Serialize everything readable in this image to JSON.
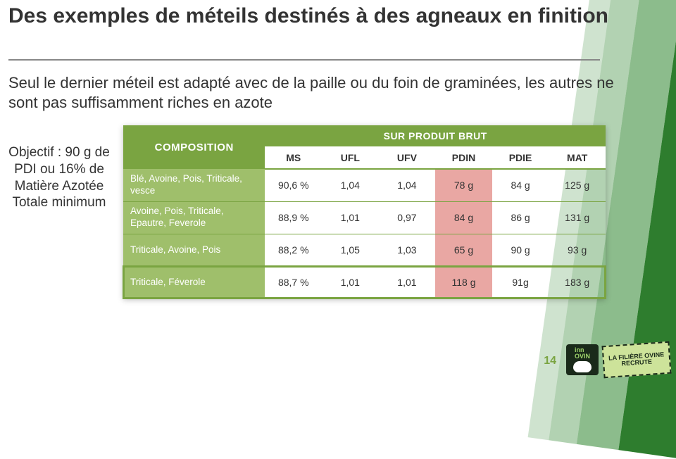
{
  "title": "Des exemples de méteils destinés à des agneaux en finition",
  "subtitle": "Seul le dernier méteil est adapté avec de la paille ou du foin de graminées, les autres ne sont pas suffisamment riches en azote",
  "objectif": "Objectif : 90 g de PDI ou 16% de Matière Azotée Totale minimum",
  "table": {
    "header_composition": "COMPOSITION",
    "header_spb": "SUR PRODUIT BRUT",
    "columns": [
      "MS",
      "UFL",
      "UFV",
      "PDIN",
      "PDIE",
      "MAT"
    ],
    "highlight_columns": [
      "PDIN"
    ],
    "highlight_row_index": 3,
    "colors": {
      "header_bg": "#7aa441",
      "rowlabel_bg": "#9fbf6b",
      "pdin_bg": "#e9a7a3",
      "rule": "#7aa441",
      "text_white": "#ffffff",
      "text_dark": "#333333"
    },
    "rows": [
      {
        "label": "Blé, Avoine, Pois, Triticale, vesce",
        "values": [
          "90,6 %",
          "1,04",
          "1,04",
          "78 g",
          "84 g",
          "125 g"
        ]
      },
      {
        "label": "Avoine, Pois, Triticale, Epautre, Feverole",
        "values": [
          "88,9 %",
          "1,01",
          "0,97",
          "84 g",
          "86 g",
          "131 g"
        ]
      },
      {
        "label": "Triticale, Avoine, Pois",
        "values": [
          "88,2 %",
          "1,05",
          "1,03",
          "65 g",
          "90 g",
          "93 g"
        ]
      },
      {
        "label": "Triticale, Féverole",
        "values": [
          "88,7 %",
          "1,01",
          "1,01",
          "118 g",
          "91g",
          "183 g"
        ]
      }
    ]
  },
  "page_number": "14",
  "logos": {
    "innovin": "inn\nOVIN",
    "recrute": "LA FILIÈRE OVINE RECRUTE"
  }
}
